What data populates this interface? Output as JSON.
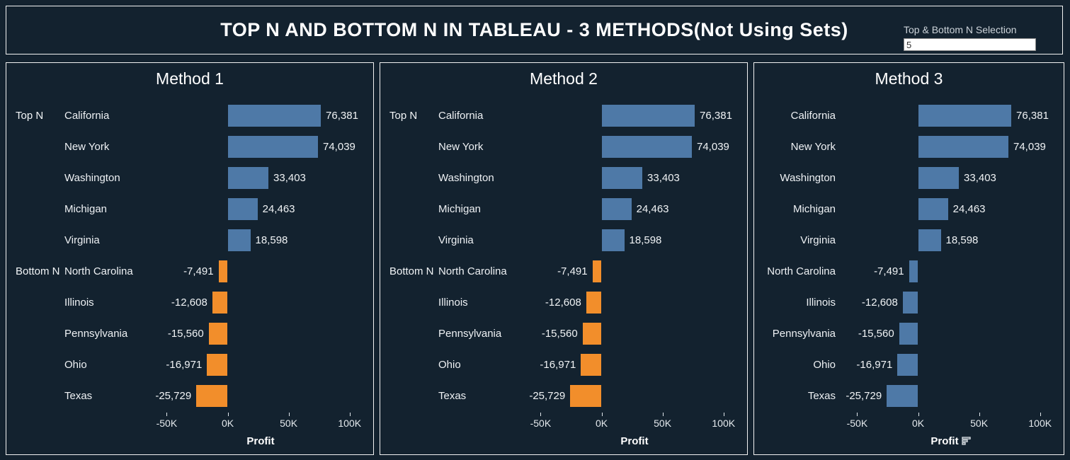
{
  "colors": {
    "background": "#13222f",
    "panel_border": "#f2f2f2",
    "positive_bar": "#4e79a7",
    "negative_bar_methods_1_2": "#f28e2b",
    "negative_bar_method_3": "#4e79a7",
    "text": "#ffffff"
  },
  "header": {
    "title": "TOP N AND BOTTOM N IN TABLEAU - 3 METHODS(Not Using Sets)",
    "selector_label": "Top & Bottom N Selection",
    "selector_value": "5"
  },
  "chart_data": [
    {
      "type": "bar",
      "orientation": "horizontal",
      "title": "Method 1",
      "categories": [
        "California",
        "New York",
        "Washington",
        "Michigan",
        "Virginia",
        "North Carolina",
        "Illinois",
        "Pennsylvania",
        "Ohio",
        "Texas"
      ],
      "values": [
        76381,
        74039,
        33403,
        24463,
        18598,
        -7491,
        -12608,
        -15560,
        -16971,
        -25729
      ],
      "value_labels": [
        "76,381",
        "74,039",
        "33,403",
        "24,463",
        "18,598",
        "-7,491",
        "-12,608",
        "-15,560",
        "-16,971",
        "-25,729"
      ],
      "row_groups": [
        {
          "index": 0,
          "label": "Top N"
        },
        {
          "index": 5,
          "label": "Bottom N"
        }
      ],
      "show_group_labels": true,
      "positive_color": "#4e79a7",
      "negative_color": "#f28e2b",
      "xlabel": "Profit",
      "x_ticks": [
        "-50K",
        "0K",
        "50K",
        "100K"
      ],
      "x_tick_values": [
        -50000,
        0,
        50000,
        100000
      ],
      "xlim": [
        -63000,
        117000
      ],
      "grid": false,
      "sort_icon": false
    },
    {
      "type": "bar",
      "orientation": "horizontal",
      "title": "Method 2",
      "categories": [
        "California",
        "New York",
        "Washington",
        "Michigan",
        "Virginia",
        "North Carolina",
        "Illinois",
        "Pennsylvania",
        "Ohio",
        "Texas"
      ],
      "values": [
        76381,
        74039,
        33403,
        24463,
        18598,
        -7491,
        -12608,
        -15560,
        -16971,
        -25729
      ],
      "value_labels": [
        "76,381",
        "74,039",
        "33,403",
        "24,463",
        "18,598",
        "-7,491",
        "-12,608",
        "-15,560",
        "-16,971",
        "-25,729"
      ],
      "row_groups": [
        {
          "index": 0,
          "label": "Top N"
        },
        {
          "index": 5,
          "label": "Bottom N"
        }
      ],
      "show_group_labels": true,
      "positive_color": "#4e79a7",
      "negative_color": "#f28e2b",
      "xlabel": "Profit",
      "x_ticks": [
        "-50K",
        "0K",
        "50K",
        "100K"
      ],
      "x_tick_values": [
        -50000,
        0,
        50000,
        100000
      ],
      "xlim": [
        -63000,
        117000
      ],
      "grid": false,
      "sort_icon": false
    },
    {
      "type": "bar",
      "orientation": "horizontal",
      "title": "Method 3",
      "categories": [
        "California",
        "New York",
        "Washington",
        "Michigan",
        "Virginia",
        "North Carolina",
        "Illinois",
        "Pennsylvania",
        "Ohio",
        "Texas"
      ],
      "values": [
        76381,
        74039,
        33403,
        24463,
        18598,
        -7491,
        -12608,
        -15560,
        -16971,
        -25729
      ],
      "value_labels": [
        "76,381",
        "74,039",
        "33,403",
        "24,463",
        "18,598",
        "-7,491",
        "-12,608",
        "-15,560",
        "-16,971",
        "-25,729"
      ],
      "row_groups": [],
      "show_group_labels": false,
      "positive_color": "#4e79a7",
      "negative_color": "#4e79a7",
      "xlabel": "Profit",
      "x_ticks": [
        "-50K",
        "0K",
        "50K",
        "100K"
      ],
      "x_tick_values": [
        -50000,
        0,
        50000,
        100000
      ],
      "xlim": [
        -63000,
        117000
      ],
      "grid": false,
      "sort_icon": true
    }
  ]
}
